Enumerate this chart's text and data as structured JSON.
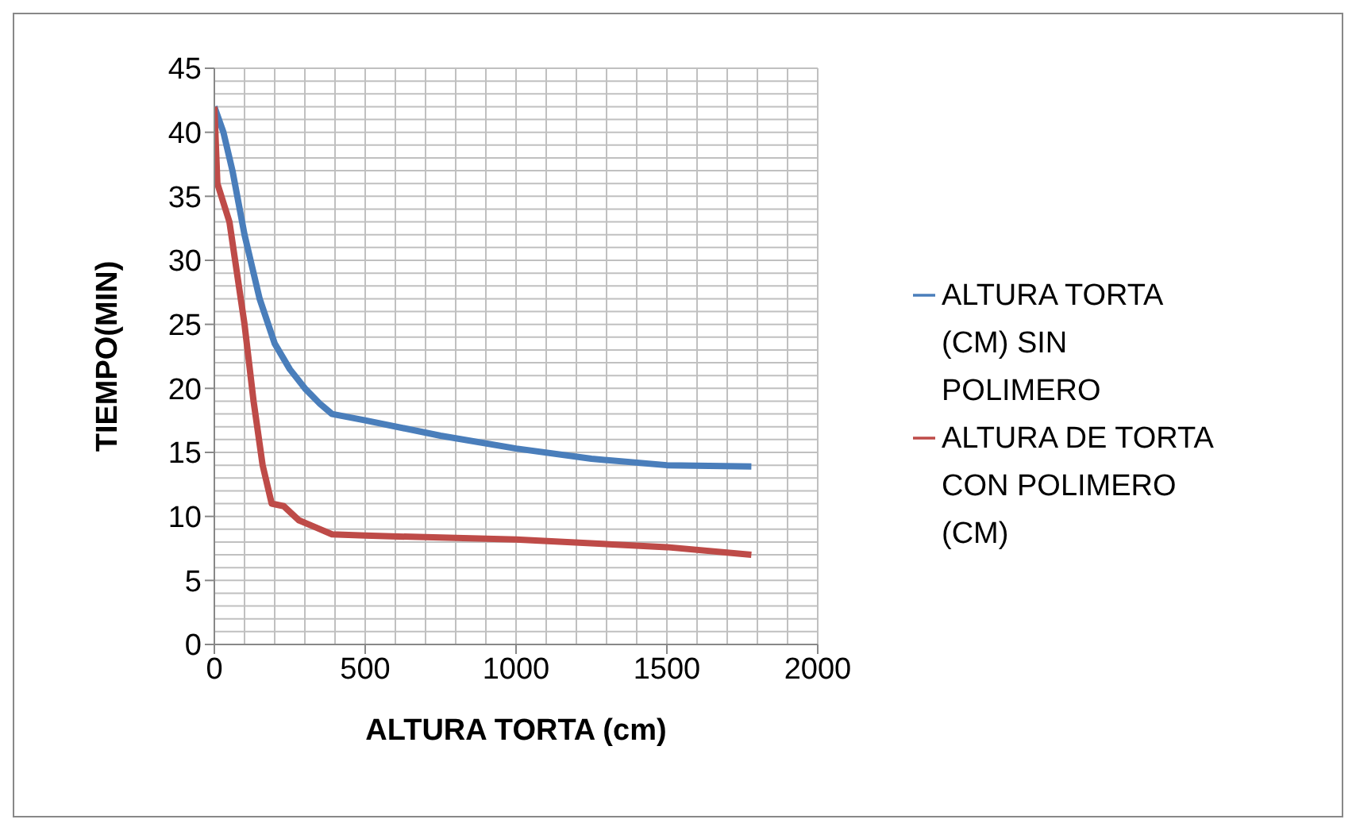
{
  "chart_data": {
    "type": "line",
    "xlabel": "ALTURA TORTA (cm)",
    "ylabel": "TIEMPO(MIN)",
    "xlim": [
      0,
      2000
    ],
    "xticks": [
      0,
      500,
      1000,
      1500,
      2000
    ],
    "ylim": [
      0,
      45
    ],
    "yticks": [
      0,
      5,
      10,
      15,
      20,
      25,
      30,
      35,
      40,
      45
    ],
    "grid": true,
    "legend": "right",
    "marker": "none",
    "line_style": "solid",
    "series": [
      {
        "name": "ALTURA TORTA (CM) SIN POLIMERO",
        "color": "#4a7ebb",
        "x": [
          0,
          30,
          60,
          100,
          150,
          200,
          250,
          300,
          350,
          390,
          500,
          750,
          1000,
          1250,
          1500,
          1780
        ],
        "values": [
          42,
          40,
          37,
          32,
          27,
          23.5,
          21.5,
          20,
          18.8,
          18,
          17.5,
          16.3,
          15.3,
          14.5,
          14,
          13.9
        ]
      },
      {
        "name": "ALTURA DE TORTA CON POLIMERO (CM)",
        "color": "#be4b48",
        "x": [
          0,
          10,
          50,
          100,
          130,
          160,
          190,
          230,
          280,
          340,
          390,
          500,
          1000,
          1500,
          1780
        ],
        "values": [
          42,
          36,
          33,
          25,
          19,
          14,
          11,
          10.8,
          9.7,
          9.1,
          8.6,
          8.5,
          8.2,
          7.6,
          7.0
        ]
      }
    ]
  }
}
